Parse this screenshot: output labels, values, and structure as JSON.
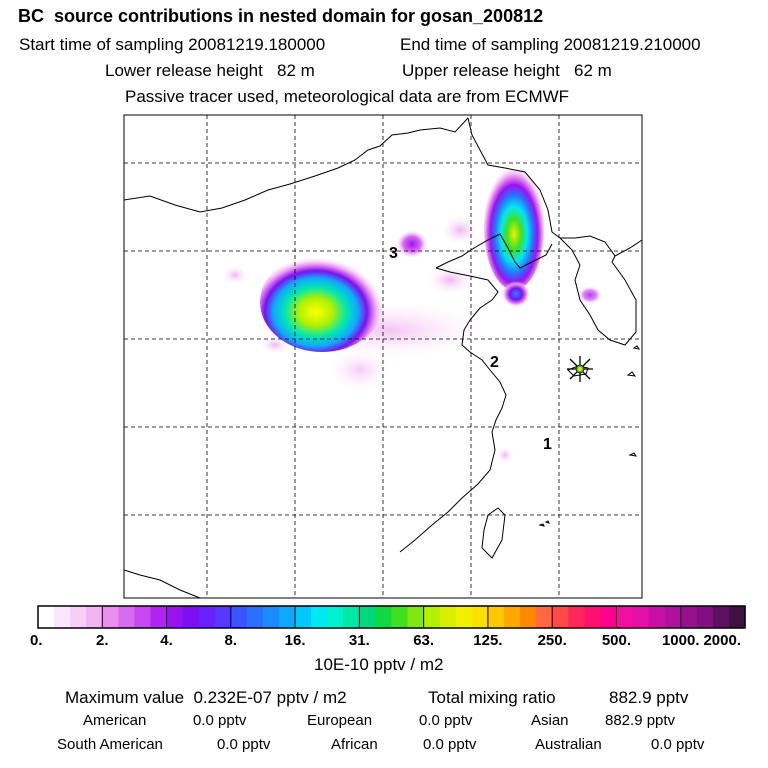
{
  "title": "BC  source contributions in nested domain for gosan_200812",
  "header": {
    "start_label": "Start time of sampling 20081219.180000",
    "end_label": "End time of sampling 20081219.210000",
    "lower_label": "Lower release height   82 m",
    "upper_label": "Upper release height   62 m",
    "tracer_label": "Passive tracer used, meteorological data are from ECMWF"
  },
  "chart_data": {
    "type": "heatmap",
    "units": "10E-10 pptv / m2",
    "levels": [
      "0.",
      "2.",
      "4.",
      "8.",
      "16.",
      "31.",
      "63.",
      "125.",
      "250.",
      "500.",
      "1000.",
      "2000."
    ],
    "colors": [
      "#ffffff",
      "#fbe6fb",
      "#f7cef7",
      "#f2b4f2",
      "#e88ff0",
      "#d86cf0",
      "#c947f0",
      "#b024f2",
      "#9a12f0",
      "#7e10ef",
      "#6b20ff",
      "#5438ff",
      "#3c54ff",
      "#2a70ff",
      "#1a8cff",
      "#10a8ff",
      "#00c8ff",
      "#00e8f0",
      "#00f0d0",
      "#00e8a8",
      "#00d880",
      "#10d840",
      "#40e020",
      "#80e810",
      "#b0f000",
      "#d8f000",
      "#f0f000",
      "#ffe000",
      "#ffc800",
      "#ffa800",
      "#ff8800",
      "#ff6840",
      "#ff4848",
      "#ff2858",
      "#ff1070",
      "#ff0090",
      "#f010a0",
      "#e010a8",
      "#c810a8",
      "#b010a0",
      "#981090",
      "#801080",
      "#601060",
      "#401040"
    ],
    "markers": [
      {
        "label": "1",
        "role": "region"
      },
      {
        "label": "2",
        "role": "region"
      },
      {
        "label": "3",
        "role": "region"
      }
    ],
    "receptor": "gosan"
  },
  "footer": {
    "max_text": "Maximum value  0.232E-07 pptv / m2",
    "total_label": "Total mixing ratio",
    "total_value": "882.9 pptv",
    "american_label": "American",
    "american_value": "0.0 pptv",
    "european_label": "European",
    "european_value": "0.0 pptv",
    "asian_label": "Asian",
    "asian_value": "882.9 pptv",
    "south_american_label": "South American",
    "south_american_value": "0.0 pptv",
    "african_label": "African",
    "african_value": "0.0 pptv",
    "australian_label": "Australian",
    "australian_value": "0.0 pptv"
  }
}
